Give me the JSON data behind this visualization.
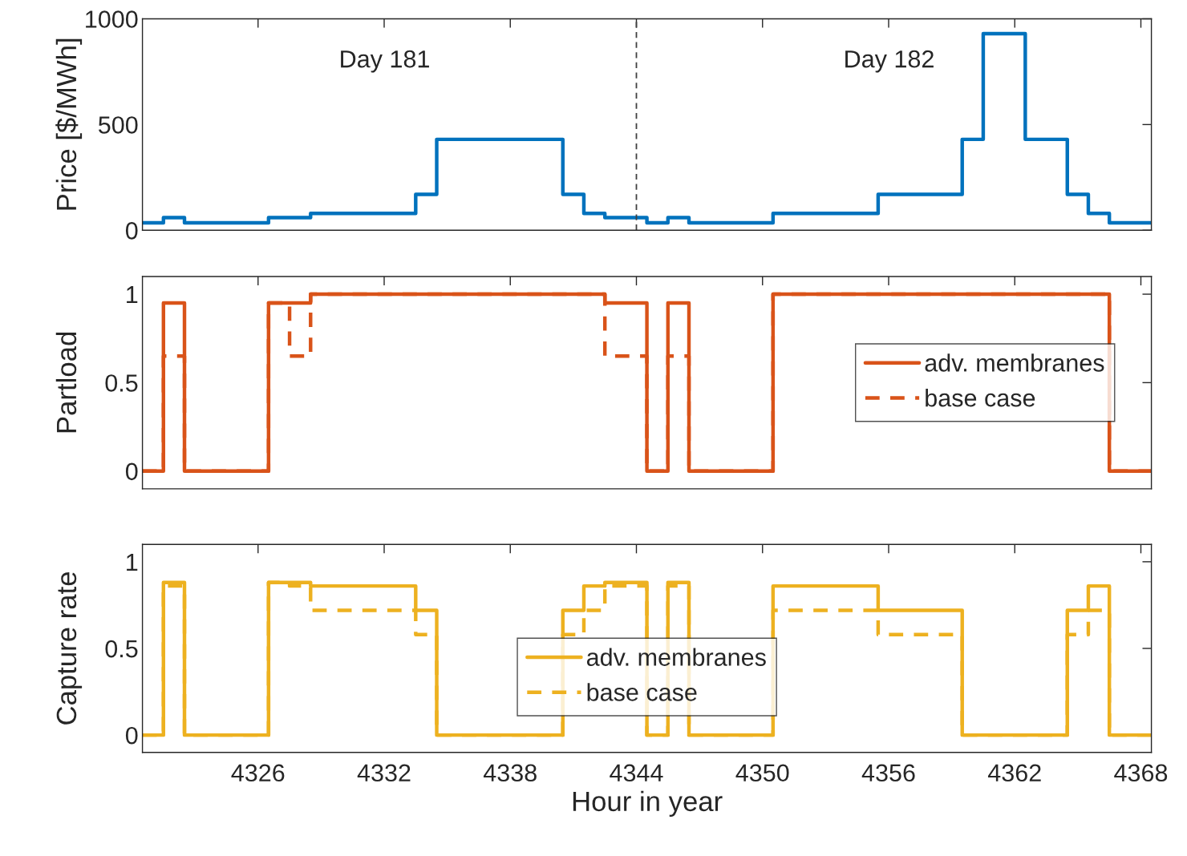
{
  "chart_data": [
    {
      "type": "step",
      "ylabel": "Price [$/MWh]",
      "xlim": [
        4320.5,
        4368.5
      ],
      "xticks": [
        4326,
        4332,
        4338,
        4344,
        4350,
        4356,
        4362,
        4368
      ],
      "ylim": [
        0,
        1000
      ],
      "yticks": [
        0,
        500,
        1000
      ],
      "tick_labels": "y",
      "grid": false,
      "legend": false,
      "x": [
        4320.5,
        4321.5,
        4322.5,
        4323.5,
        4324.5,
        4325.5,
        4326.5,
        4327.5,
        4328.5,
        4329.5,
        4330.5,
        4331.5,
        4332.5,
        4333.5,
        4334.5,
        4335.5,
        4336.5,
        4337.5,
        4338.5,
        4339.5,
        4340.5,
        4341.5,
        4342.5,
        4343.5,
        4344.5,
        4345.5,
        4346.5,
        4347.5,
        4348.5,
        4349.5,
        4350.5,
        4351.5,
        4352.5,
        4353.5,
        4354.5,
        4355.5,
        4356.5,
        4357.5,
        4358.5,
        4359.5,
        4360.5,
        4361.5,
        4362.5,
        4363.5,
        4364.5,
        4365.5,
        4366.5,
        4367.5,
        4368.5
      ],
      "series": [
        {
          "color": "#0072bd",
          "line_style": "solid",
          "values": [
            35,
            60,
            35,
            35,
            35,
            35,
            60,
            60,
            80,
            80,
            80,
            80,
            80,
            170,
            430,
            430,
            430,
            430,
            430,
            430,
            170,
            80,
            60,
            60,
            35,
            60,
            35,
            35,
            35,
            35,
            80,
            80,
            80,
            80,
            80,
            170,
            170,
            170,
            170,
            430,
            930,
            930,
            430,
            430,
            170,
            80,
            35,
            35,
            35
          ]
        }
      ],
      "ref_lines": [
        {
          "axis": "x",
          "value": 4344,
          "color": "#404040",
          "line_style": "dashed"
        }
      ],
      "annotations": [
        "Day 181",
        "Day 182"
      ]
    },
    {
      "type": "step",
      "ylabel": "Partload",
      "xlim": [
        4320.5,
        4368.5
      ],
      "xticks": [
        4326,
        4332,
        4338,
        4344,
        4350,
        4356,
        4362,
        4368
      ],
      "ylim": [
        -0.1,
        1.1
      ],
      "yticks": [
        0,
        0.5,
        1
      ],
      "tick_labels": "y",
      "grid": false,
      "legend": "center right",
      "x": [
        4320.5,
        4321.5,
        4322.5,
        4323.5,
        4324.5,
        4325.5,
        4326.5,
        4327.5,
        4328.5,
        4329.5,
        4330.5,
        4331.5,
        4332.5,
        4333.5,
        4334.5,
        4335.5,
        4336.5,
        4337.5,
        4338.5,
        4339.5,
        4340.5,
        4341.5,
        4342.5,
        4343.5,
        4344.5,
        4345.5,
        4346.5,
        4347.5,
        4348.5,
        4349.5,
        4350.5,
        4351.5,
        4352.5,
        4353.5,
        4354.5,
        4355.5,
        4356.5,
        4357.5,
        4358.5,
        4359.5,
        4360.5,
        4361.5,
        4362.5,
        4363.5,
        4364.5,
        4365.5,
        4366.5,
        4367.5,
        4368.5
      ],
      "series": [
        {
          "name": "adv. membranes",
          "color": "#d95319",
          "line_style": "solid",
          "values": [
            0,
            0.95,
            0,
            0,
            0,
            0,
            0.95,
            0.95,
            1,
            1,
            1,
            1,
            1,
            1,
            1,
            1,
            1,
            1,
            1,
            1,
            1,
            1,
            0.95,
            0.95,
            0,
            0.95,
            0,
            0,
            0,
            0,
            1,
            1,
            1,
            1,
            1,
            1,
            1,
            1,
            1,
            1,
            1,
            1,
            1,
            1,
            1,
            1,
            0,
            0,
            0
          ]
        },
        {
          "name": "base case",
          "color": "#d95319",
          "line_style": "dashed",
          "values": [
            0,
            0.65,
            0,
            0,
            0,
            0,
            0.95,
            0.65,
            1,
            1,
            1,
            1,
            1,
            1,
            1,
            1,
            1,
            1,
            1,
            1,
            1,
            1,
            0.65,
            0.65,
            0,
            0.65,
            0,
            0,
            0,
            0,
            1,
            1,
            1,
            1,
            1,
            1,
            1,
            1,
            1,
            1,
            1,
            1,
            1,
            1,
            1,
            1,
            0,
            0,
            0
          ]
        }
      ]
    },
    {
      "type": "step",
      "ylabel": "Capture rate",
      "xlabel": "Hour in year",
      "xlim": [
        4320.5,
        4368.5
      ],
      "xticks": [
        4326,
        4332,
        4338,
        4344,
        4350,
        4356,
        4362,
        4368
      ],
      "ylim": [
        -0.1,
        1.1
      ],
      "yticks": [
        0,
        0.5,
        1
      ],
      "grid": false,
      "legend": "lower center",
      "x": [
        4320.5,
        4321.5,
        4322.5,
        4323.5,
        4324.5,
        4325.5,
        4326.5,
        4327.5,
        4328.5,
        4329.5,
        4330.5,
        4331.5,
        4332.5,
        4333.5,
        4334.5,
        4335.5,
        4336.5,
        4337.5,
        4338.5,
        4339.5,
        4340.5,
        4341.5,
        4342.5,
        4343.5,
        4344.5,
        4345.5,
        4346.5,
        4347.5,
        4348.5,
        4349.5,
        4350.5,
        4351.5,
        4352.5,
        4353.5,
        4354.5,
        4355.5,
        4356.5,
        4357.5,
        4358.5,
        4359.5,
        4360.5,
        4361.5,
        4362.5,
        4363.5,
        4364.5,
        4365.5,
        4366.5,
        4367.5,
        4368.5
      ],
      "series": [
        {
          "name": "adv. membranes",
          "color": "#edb120",
          "line_style": "solid",
          "values": [
            0,
            0.88,
            0,
            0,
            0,
            0,
            0.88,
            0.88,
            0.86,
            0.86,
            0.86,
            0.86,
            0.86,
            0.72,
            0,
            0,
            0,
            0,
            0,
            0,
            0.72,
            0.86,
            0.88,
            0.88,
            0,
            0.88,
            0,
            0,
            0,
            0,
            0.86,
            0.86,
            0.86,
            0.86,
            0.86,
            0.72,
            0.72,
            0.72,
            0.72,
            0,
            0,
            0,
            0,
            0,
            0.72,
            0.86,
            0,
            0,
            0
          ]
        },
        {
          "name": "base case",
          "color": "#edb120",
          "line_style": "dashed",
          "values": [
            0,
            0.86,
            0,
            0,
            0,
            0,
            0.88,
            0.86,
            0.72,
            0.72,
            0.72,
            0.72,
            0.72,
            0.58,
            0,
            0,
            0,
            0,
            0,
            0,
            0.58,
            0.72,
            0.86,
            0.86,
            0,
            0.86,
            0,
            0,
            0,
            0,
            0.72,
            0.72,
            0.72,
            0.72,
            0.72,
            0.58,
            0.58,
            0.58,
            0.58,
            0,
            0,
            0,
            0,
            0,
            0.58,
            0.72,
            0,
            0,
            0
          ]
        }
      ]
    }
  ]
}
